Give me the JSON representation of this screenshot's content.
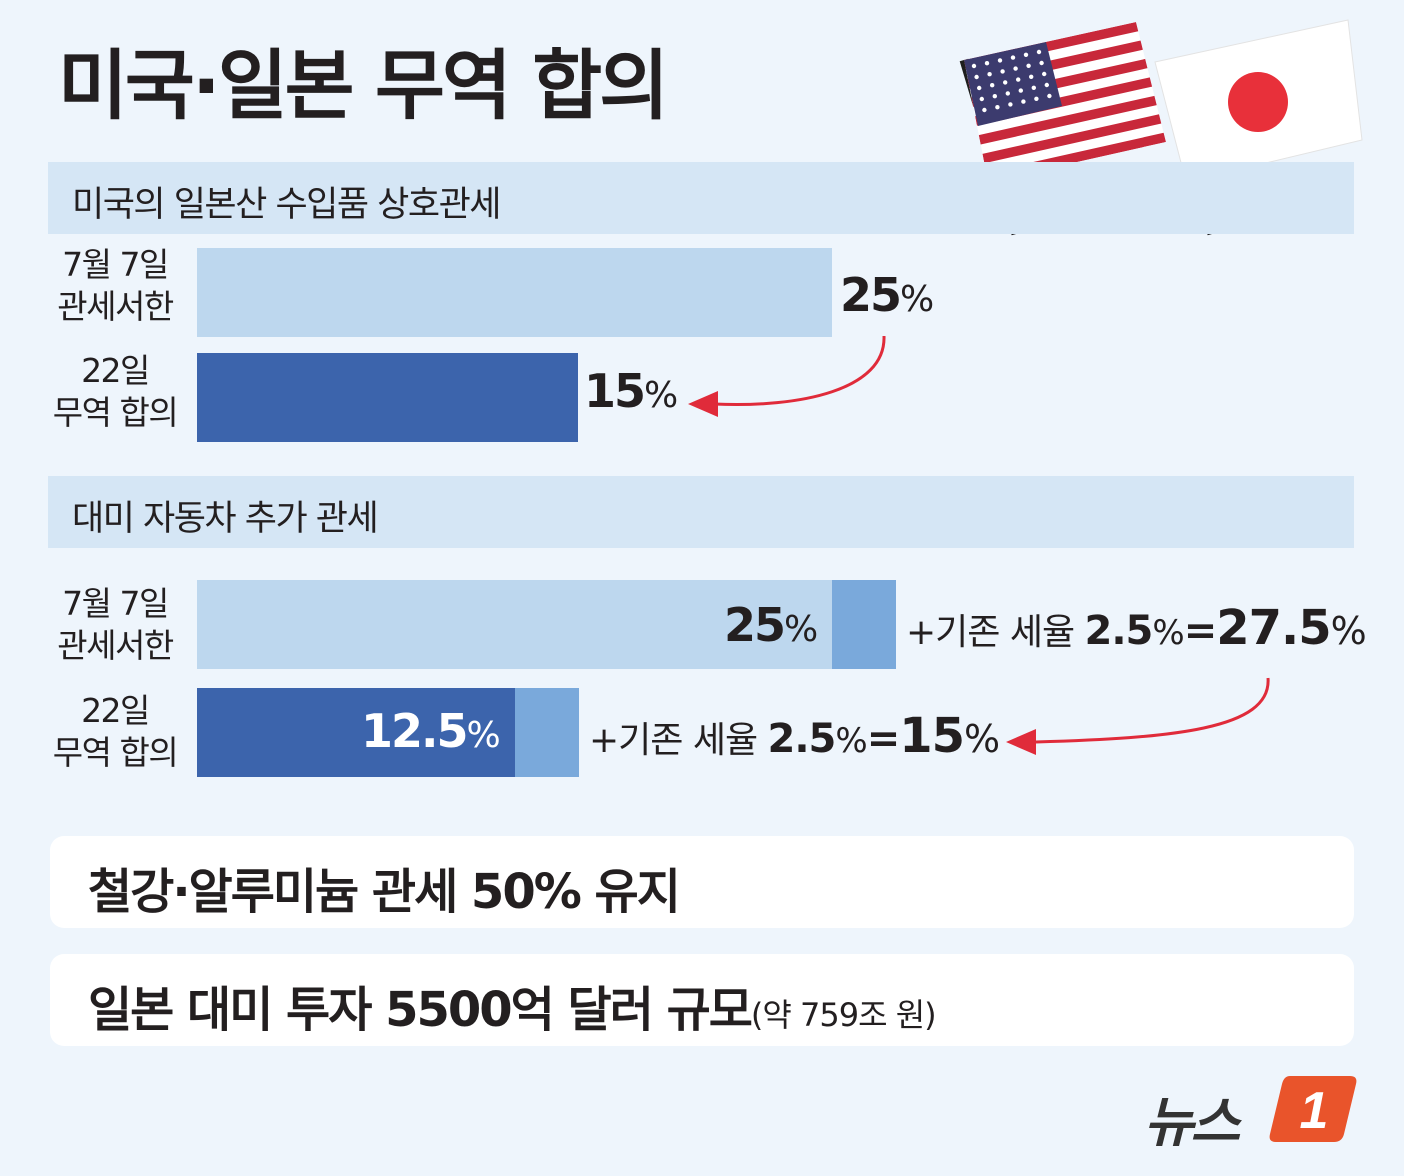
{
  "title": "미국·일본 무역 합의",
  "sections": [
    {
      "header": "미국의 일본산 수입품 상호관세",
      "rows": [
        {
          "label_line1": "7월 7일",
          "label_line2": "관세서한",
          "value": "25",
          "unit": "%"
        },
        {
          "label_line1": "22일",
          "label_line2": "무역 합의",
          "value": "15",
          "unit": "%"
        }
      ]
    },
    {
      "header": "대미 자동차 추가 관세",
      "rows": [
        {
          "label_line1": "7월 7일",
          "label_line2": "관세서한",
          "value": "25",
          "unit": "%",
          "note_prefix": "+기존 세율 ",
          "note_base": "2.5",
          "note_eq": "=",
          "note_total": "27.5"
        },
        {
          "label_line1": "22일",
          "label_line2": "무역 합의",
          "value": "12.5",
          "unit": "%",
          "note_prefix": "+기존 세율 ",
          "note_base": "2.5",
          "note_eq": "=",
          "note_total": "15"
        }
      ]
    }
  ],
  "chart_data": [
    {
      "type": "bar",
      "title": "미국의 일본산 수입품 상호관세",
      "categories": [
        "7월 7일 관세서한",
        "22일 무역 합의"
      ],
      "values": [
        25,
        15
      ],
      "unit": "%",
      "colors": [
        "#bdd7ee",
        "#3c64ac"
      ]
    },
    {
      "type": "bar",
      "stacked": true,
      "title": "대미 자동차 추가 관세",
      "categories": [
        "7월 7일 관세서한",
        "22일 무역 합의"
      ],
      "series": [
        {
          "values": [
            25,
            12.5
          ],
          "colors": [
            "#bdd7ee",
            "#3c64ac"
          ]
        },
        {
          "name": "기존 세율",
          "values": [
            2.5,
            2.5
          ],
          "color": "#7aa9db"
        }
      ],
      "totals": [
        27.5,
        15
      ],
      "unit": "%"
    }
  ],
  "info": [
    {
      "text": "철강·알루미늄 관세 50% 유지",
      "sub": ""
    },
    {
      "text": "일본 대미 투자 5500억 달러 규모",
      "sub": "(약 759조 원)"
    }
  ],
  "logo": {
    "text": "뉴스",
    "badge": "1"
  },
  "colors": {
    "background": "#eef5fc",
    "header": "#d5e6f5",
    "bar_light": "#bdd7ee",
    "bar_dark": "#3c64ac",
    "bar_existing": "#7aa9db",
    "arrow": "#e02b3a",
    "logo_orange": "#e9542b"
  },
  "icons": [
    "us-flag-icon",
    "japan-flag-icon",
    "curved-arrow-icon"
  ]
}
